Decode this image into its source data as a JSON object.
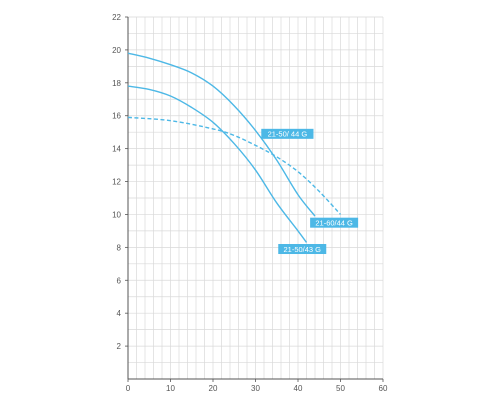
{
  "chart_data": {
    "type": "line",
    "title": "",
    "xlabel": "",
    "ylabel": "",
    "xlim": [
      0,
      60
    ],
    "ylim": [
      0,
      22
    ],
    "xticks": [
      0,
      10,
      20,
      30,
      40,
      50,
      60
    ],
    "yticks": [
      2,
      4,
      6,
      8,
      10,
      12,
      14,
      16,
      18,
      20,
      22
    ],
    "grid": true,
    "minor_grid_x_step": 2,
    "minor_grid_y_step": 1,
    "legend": "none",
    "colors": {
      "series": "#4db8e6",
      "label_bg": "#4db8e6",
      "label_text": "#ffffff",
      "grid": "#d9d9d9",
      "axis": "#555555"
    },
    "series": [
      {
        "name": "21-50/ 44 G",
        "style": "solid",
        "x": [
          0,
          5,
          10,
          15,
          20,
          25,
          30,
          35,
          40,
          44
        ],
        "y": [
          19.8,
          19.5,
          19.1,
          18.6,
          17.8,
          16.6,
          15.1,
          13.3,
          11.2,
          9.9
        ]
      },
      {
        "name": "21-50/ 43 G",
        "style": "solid",
        "x": [
          0,
          5,
          10,
          15,
          20,
          25,
          30,
          35,
          40,
          42
        ],
        "y": [
          17.8,
          17.6,
          17.2,
          16.5,
          15.6,
          14.3,
          12.7,
          10.7,
          9.0,
          8.3
        ]
      },
      {
        "name": "21-60/44 G",
        "style": "dashed",
        "x": [
          0,
          10,
          20,
          25,
          30,
          35,
          40,
          45,
          50
        ],
        "y": [
          15.9,
          15.7,
          15.2,
          14.8,
          14.2,
          13.5,
          12.6,
          11.4,
          10.0
        ]
      }
    ],
    "series_labels": [
      {
        "text": "21-50/ 44 G",
        "x": 37.5,
        "y": 14.9
      },
      {
        "text": "21-60/44 G",
        "x": 48.5,
        "y": 9.5
      },
      {
        "text": "21-50/43 G",
        "x": 41.0,
        "y": 7.9
      }
    ]
  }
}
